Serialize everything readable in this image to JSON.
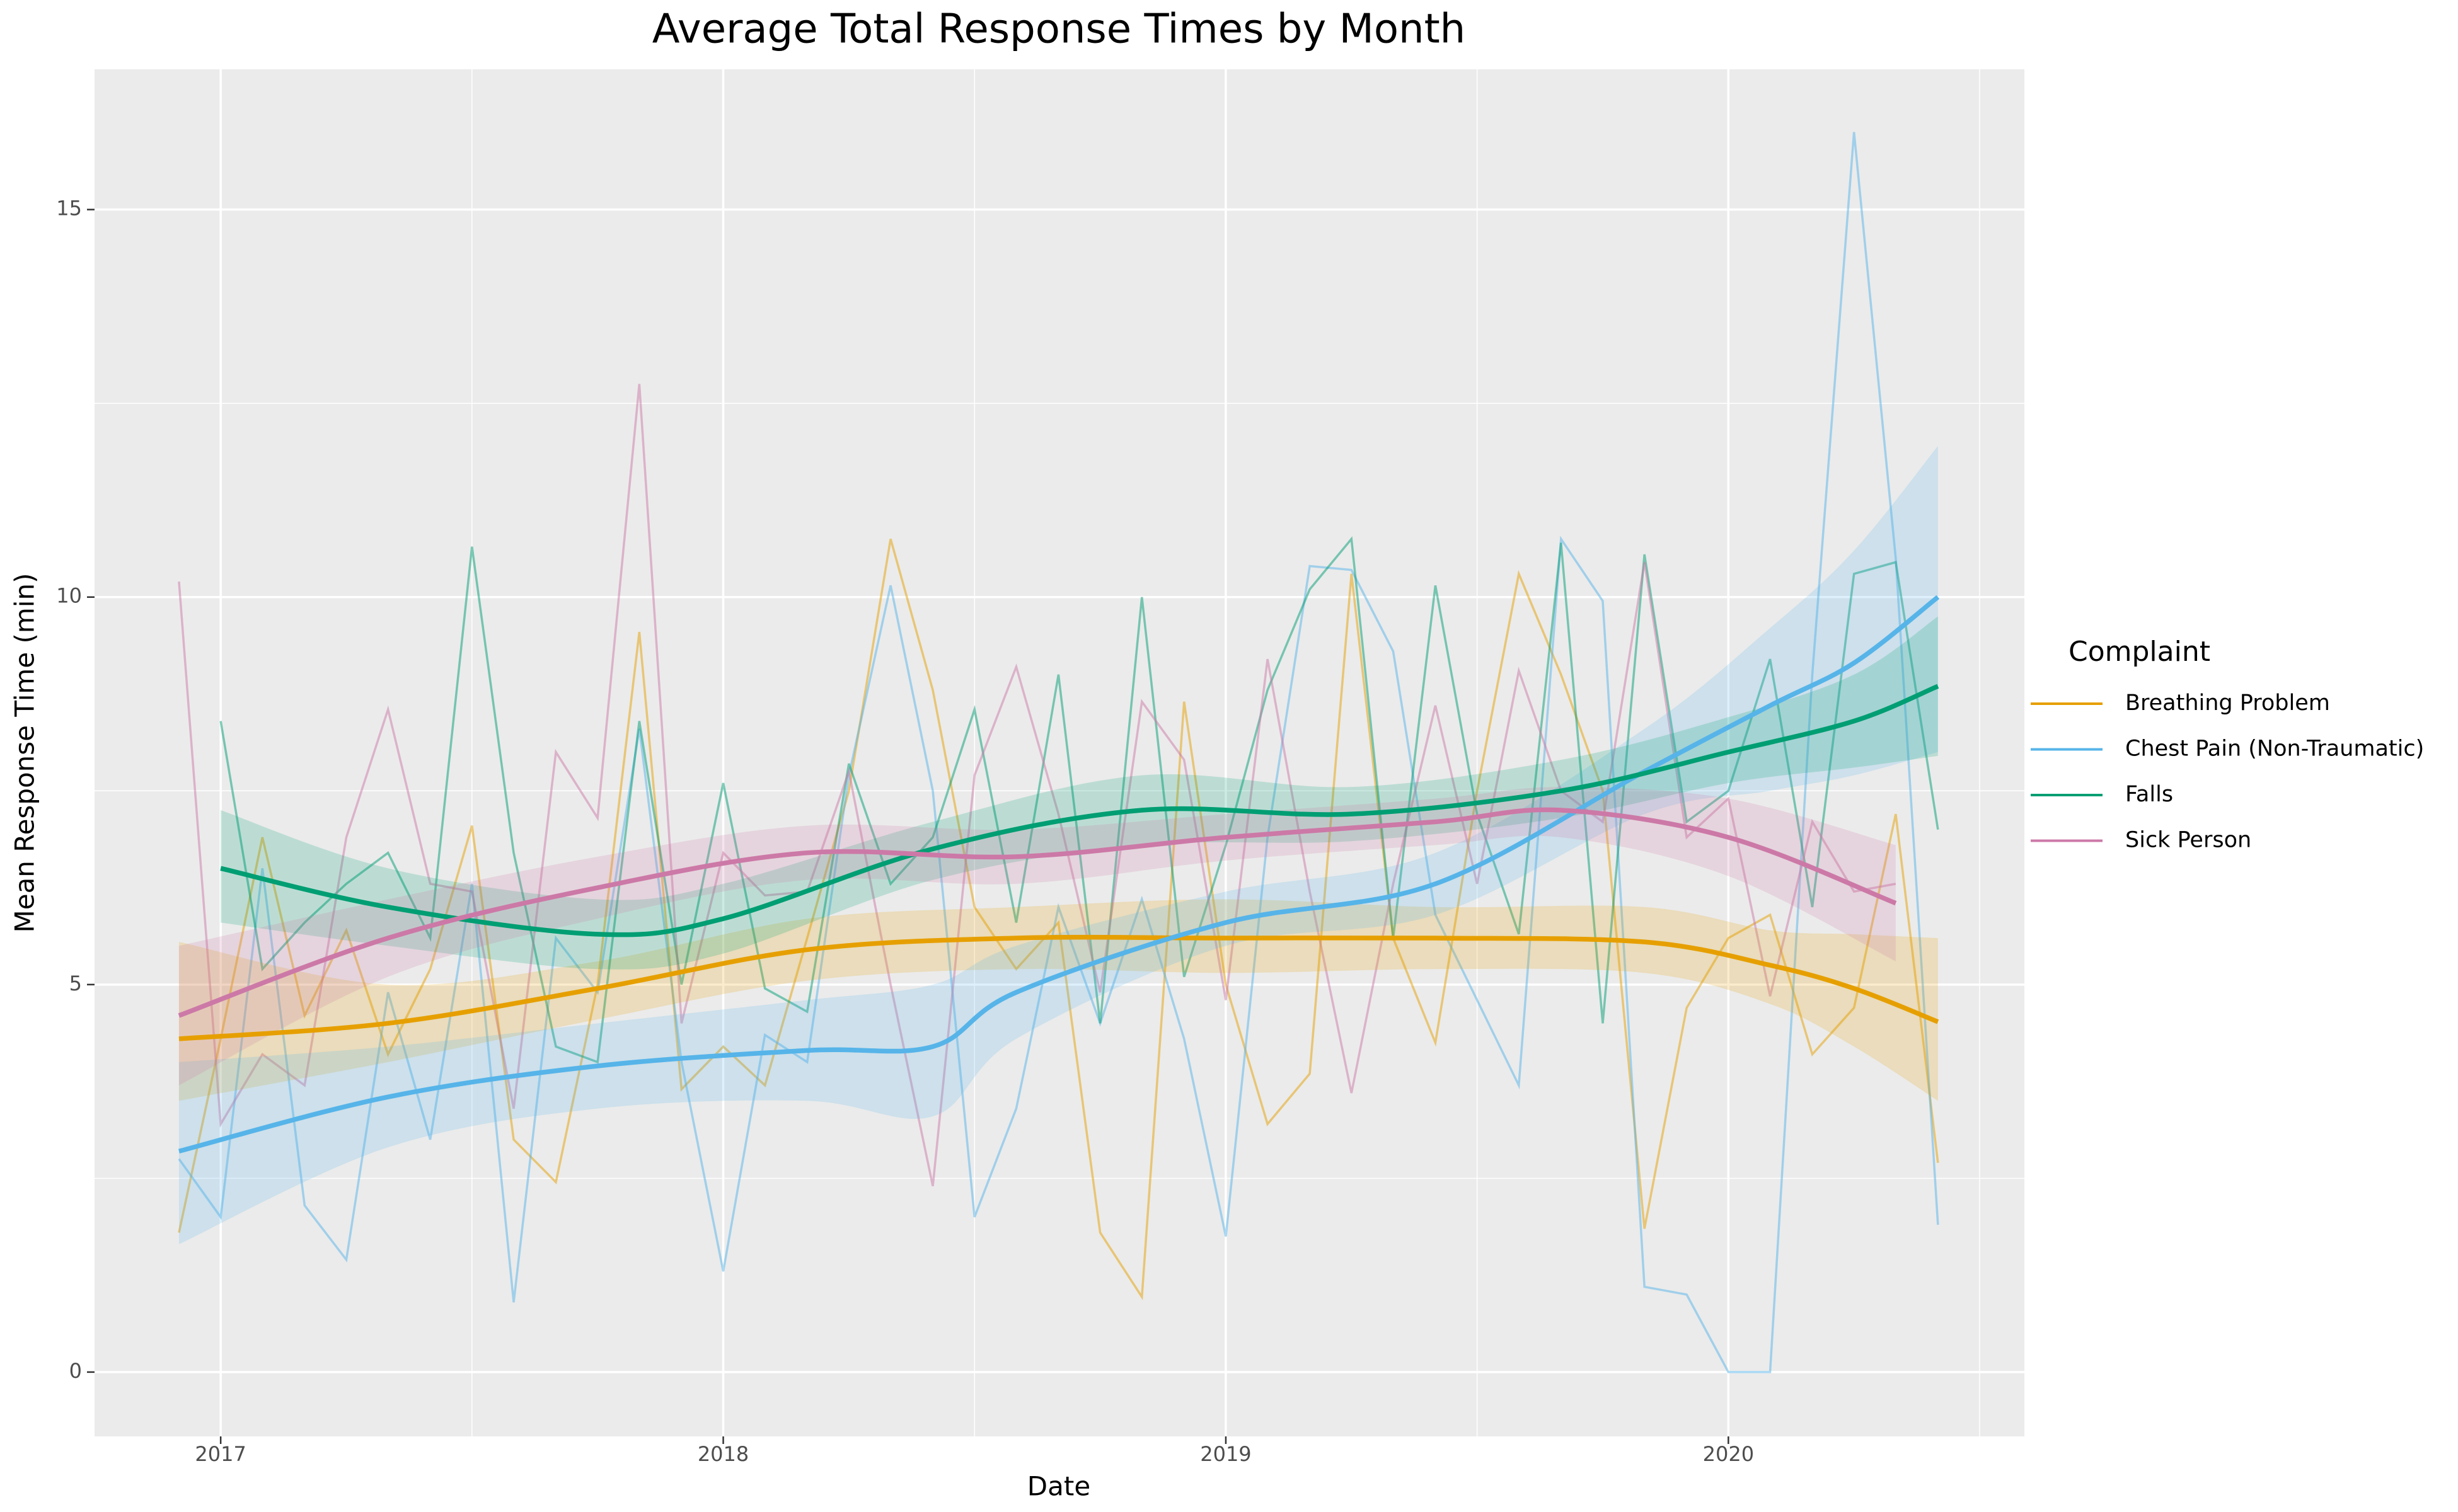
{
  "chart_data": {
    "type": "line",
    "title": "Average Total Response Times by Month",
    "x_label": "Date",
    "y_label": "Mean Response Time (min)",
    "legend_title": "Complaint",
    "legend": "right",
    "grid": true,
    "xlim": [
      2016.749,
      2020.589
    ],
    "xticks": [
      2017,
      2018,
      2019,
      2020
    ],
    "ylim": [
      -0.83,
      16.81
    ],
    "yticks": [
      0,
      5,
      10,
      15
    ],
    "x": [
      2016.917,
      2017.0,
      2017.083,
      2017.167,
      2017.25,
      2017.333,
      2017.417,
      2017.5,
      2017.583,
      2017.667,
      2017.75,
      2017.833,
      2017.917,
      2018.0,
      2018.083,
      2018.167,
      2018.25,
      2018.333,
      2018.417,
      2018.5,
      2018.583,
      2018.667,
      2018.75,
      2018.833,
      2018.917,
      2019.0,
      2019.083,
      2019.167,
      2019.25,
      2019.333,
      2019.417,
      2019.5,
      2019.583,
      2019.667,
      2019.75,
      2019.833,
      2019.917,
      2020.0,
      2020.083,
      2020.167,
      2020.25,
      2020.333,
      2020.417
    ],
    "series": [
      {
        "name": "Breathing Problem",
        "color": "#E69F00",
        "values": [
          1.8,
          4.3,
          6.9,
          4.6,
          5.7,
          4.1,
          5.2,
          7.05,
          3.0,
          2.45,
          5.0,
          9.55,
          3.65,
          4.2,
          3.7,
          5.6,
          7.5,
          10.75,
          8.8,
          6.0,
          5.2,
          5.8,
          1.8,
          0.97,
          8.65,
          5.0,
          3.2,
          3.85,
          10.3,
          5.6,
          4.25,
          7.5,
          10.3,
          9.0,
          7.5,
          1.85,
          4.7,
          5.6,
          5.9,
          4.1,
          4.7,
          7.2,
          2.7
        ],
        "smooth_x": [
          2016.917,
          2017.333,
          2017.75,
          2018.167,
          2018.583,
          2019.0,
          2019.417,
          2019.833,
          2020.083,
          2020.25,
          2020.417
        ],
        "smooth": [
          4.3,
          4.5,
          4.95,
          5.45,
          5.6,
          5.6,
          5.6,
          5.55,
          5.25,
          4.95,
          4.52
        ],
        "lower": [
          3.5,
          4.0,
          4.55,
          5.05,
          5.2,
          5.15,
          5.2,
          5.15,
          4.75,
          4.2,
          3.5
        ],
        "upper": [
          5.55,
          5.0,
          5.3,
          5.85,
          6.0,
          6.1,
          6.0,
          6.0,
          5.7,
          5.65,
          5.6
        ]
      },
      {
        "name": "Chest Pain (Non-Traumatic)",
        "color": "#56B4E9",
        "values": [
          2.75,
          2.0,
          6.5,
          2.15,
          1.45,
          4.9,
          3.0,
          6.3,
          0.9,
          5.6,
          4.9,
          8.3,
          4.0,
          1.3,
          4.35,
          4.0,
          7.7,
          10.15,
          7.5,
          2.0,
          3.4,
          6.0,
          4.5,
          6.1,
          4.3,
          1.75,
          6.9,
          10.4,
          10.35,
          9.3,
          5.9,
          4.8,
          3.7,
          10.75,
          9.95,
          1.1,
          1.0,
          0.0,
          0.0,
          9.0,
          16.0,
          10.5,
          1.9
        ],
        "smooth_x": [
          2016.917,
          2017.333,
          2017.75,
          2018.167,
          2018.417,
          2018.583,
          2019.0,
          2019.417,
          2019.833,
          2020.083,
          2020.25,
          2020.417
        ],
        "smooth": [
          2.85,
          3.55,
          3.95,
          4.15,
          4.2,
          4.9,
          5.8,
          6.3,
          7.75,
          8.6,
          9.15,
          10.0
        ],
        "lower": [
          1.65,
          2.9,
          3.4,
          3.5,
          3.3,
          4.3,
          5.5,
          5.9,
          7.2,
          7.5,
          7.7,
          8.0
        ],
        "upper": [
          4.0,
          4.2,
          4.5,
          4.8,
          5.0,
          5.5,
          6.2,
          6.7,
          8.3,
          9.6,
          10.6,
          11.95
        ]
      },
      {
        "name": "Falls",
        "color": "#009E73",
        "values": [
          null,
          8.4,
          5.2,
          5.8,
          6.3,
          6.7,
          5.6,
          10.65,
          6.7,
          4.2,
          4.0,
          8.4,
          5.0,
          7.6,
          4.95,
          4.65,
          7.85,
          6.3,
          6.9,
          8.55,
          5.8,
          9.0,
          4.5,
          10.0,
          5.1,
          6.8,
          8.8,
          10.1,
          10.75,
          5.6,
          10.15,
          7.2,
          5.65,
          10.7,
          4.5,
          10.55,
          7.1,
          7.5,
          9.2,
          6.0,
          10.3,
          10.45,
          7.0
        ],
        "smooth_x": [
          2017.0,
          2017.333,
          2017.75,
          2018.0,
          2018.417,
          2018.833,
          2019.25,
          2019.667,
          2020.0,
          2020.25,
          2020.417
        ],
        "smooth": [
          6.5,
          6.0,
          5.65,
          5.85,
          6.75,
          7.25,
          7.2,
          7.5,
          8.0,
          8.4,
          8.85
        ],
        "lower": [
          5.8,
          5.5,
          5.2,
          5.4,
          6.35,
          6.8,
          6.85,
          7.15,
          7.6,
          7.8,
          7.95
        ],
        "upper": [
          7.25,
          6.5,
          6.1,
          6.3,
          7.1,
          7.7,
          7.55,
          7.9,
          8.45,
          9.0,
          9.75
        ]
      },
      {
        "name": "Sick Person",
        "color": "#CC79A7",
        "values": [
          10.2,
          3.2,
          4.1,
          3.7,
          6.9,
          8.55,
          6.3,
          6.2,
          3.4,
          8.0,
          7.15,
          12.75,
          4.5,
          6.7,
          6.15,
          6.2,
          7.75,
          5.0,
          2.4,
          7.7,
          9.1,
          7.2,
          4.9,
          8.65,
          7.9,
          4.8,
          9.2,
          6.2,
          3.6,
          6.3,
          8.6,
          6.3,
          9.05,
          7.5,
          7.1,
          10.45,
          6.9,
          7.4,
          4.85,
          7.1,
          6.2,
          6.3,
          null
        ],
        "smooth_x": [
          2016.917,
          2017.333,
          2017.75,
          2018.167,
          2018.583,
          2019.0,
          2019.417,
          2019.667,
          2020.0,
          2020.333
        ],
        "smooth": [
          4.6,
          5.6,
          6.25,
          6.7,
          6.65,
          6.9,
          7.1,
          7.25,
          6.9,
          6.05
        ],
        "lower": [
          3.7,
          5.1,
          5.85,
          6.35,
          6.3,
          6.6,
          6.8,
          6.9,
          6.4,
          5.3
        ],
        "upper": [
          5.5,
          6.1,
          6.65,
          7.05,
          7.0,
          7.2,
          7.4,
          7.55,
          7.4,
          6.8
        ]
      }
    ]
  }
}
